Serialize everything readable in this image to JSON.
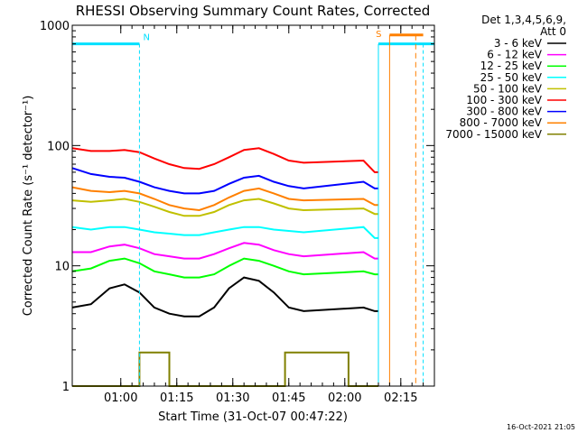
{
  "chart_data": {
    "type": "line",
    "title": "RHESSI Observing Summary Count Rates, Corrected",
    "xlabel": "Start Time (31-Oct-07 00:47:22)",
    "ylabel": "Corrected Count Rate (s⁻¹ detector⁻¹)",
    "y_scale": "log",
    "ylim": [
      1,
      1000
    ],
    "xlim_minutes": [
      0,
      97
    ],
    "y_tick_labels": [
      "1",
      "10",
      "100",
      "1000"
    ],
    "x_tick_labels": [
      "01:00",
      "01:15",
      "01:30",
      "01:45",
      "02:00",
      "02:15"
    ],
    "legend_title": "Det 1,3,4,5,6,9, Att 0",
    "legend_placement": "right",
    "timestamp": "16-Oct-2021 21:05",
    "flags": [
      {
        "label": "N",
        "color": "#00e0ff"
      },
      {
        "label": "S",
        "color": "#ff8000"
      }
    ],
    "series": [
      {
        "name": "3 - 6 keV",
        "color": "#000000",
        "points": [
          [
            0,
            4.5
          ],
          [
            5,
            4.8
          ],
          [
            10,
            6.5
          ],
          [
            14,
            7
          ],
          [
            18,
            6
          ],
          [
            22,
            4.5
          ],
          [
            26,
            4
          ],
          [
            30,
            3.8
          ],
          [
            34,
            3.8
          ],
          [
            38,
            4.5
          ],
          [
            42,
            6.5
          ],
          [
            46,
            8
          ],
          [
            50,
            7.5
          ],
          [
            54,
            6
          ],
          [
            58,
            4.5
          ],
          [
            62,
            4.2
          ],
          [
            78,
            4.5
          ],
          [
            81,
            4.2
          ],
          [
            82,
            4.2
          ]
        ]
      },
      {
        "name": "6 - 12 keV",
        "color": "#ff00ff",
        "points": [
          [
            0,
            13
          ],
          [
            5,
            13
          ],
          [
            10,
            14.5
          ],
          [
            14,
            15
          ],
          [
            18,
            14
          ],
          [
            22,
            12.5
          ],
          [
            26,
            12
          ],
          [
            30,
            11.5
          ],
          [
            34,
            11.5
          ],
          [
            38,
            12.5
          ],
          [
            42,
            14
          ],
          [
            46,
            15.5
          ],
          [
            50,
            15
          ],
          [
            54,
            13.5
          ],
          [
            58,
            12.5
          ],
          [
            62,
            12
          ],
          [
            78,
            13
          ],
          [
            81,
            11.5
          ],
          [
            82,
            11.5
          ]
        ]
      },
      {
        "name": "12 - 25 keV",
        "color": "#00ff00",
        "points": [
          [
            0,
            9
          ],
          [
            5,
            9.5
          ],
          [
            10,
            11
          ],
          [
            14,
            11.5
          ],
          [
            18,
            10.5
          ],
          [
            22,
            9
          ],
          [
            26,
            8.5
          ],
          [
            30,
            8
          ],
          [
            34,
            8
          ],
          [
            38,
            8.5
          ],
          [
            42,
            10
          ],
          [
            46,
            11.5
          ],
          [
            50,
            11
          ],
          [
            54,
            10
          ],
          [
            58,
            9
          ],
          [
            62,
            8.5
          ],
          [
            78,
            9
          ],
          [
            81,
            8.5
          ],
          [
            82,
            8.5
          ]
        ]
      },
      {
        "name": "25 - 50 keV",
        "color": "#00ffff",
        "points": [
          [
            0,
            21
          ],
          [
            5,
            20
          ],
          [
            10,
            21
          ],
          [
            14,
            21
          ],
          [
            18,
            20
          ],
          [
            22,
            19
          ],
          [
            26,
            18.5
          ],
          [
            30,
            18
          ],
          [
            34,
            18
          ],
          [
            38,
            19
          ],
          [
            42,
            20
          ],
          [
            46,
            21
          ],
          [
            50,
            21
          ],
          [
            54,
            20
          ],
          [
            58,
            19.5
          ],
          [
            62,
            19
          ],
          [
            78,
            21
          ],
          [
            81,
            17
          ],
          [
            82,
            17
          ]
        ]
      },
      {
        "name": "50 - 100 keV",
        "color": "#c0c000",
        "points": [
          [
            0,
            35
          ],
          [
            5,
            34
          ],
          [
            10,
            35
          ],
          [
            14,
            36
          ],
          [
            18,
            34
          ],
          [
            22,
            31
          ],
          [
            26,
            28
          ],
          [
            30,
            26
          ],
          [
            34,
            26
          ],
          [
            38,
            28
          ],
          [
            42,
            32
          ],
          [
            46,
            35
          ],
          [
            50,
            36
          ],
          [
            54,
            33
          ],
          [
            58,
            30
          ],
          [
            62,
            29
          ],
          [
            78,
            30
          ],
          [
            81,
            27
          ],
          [
            82,
            27
          ]
        ]
      },
      {
        "name": "100 - 300 keV",
        "color": "#ff0000",
        "points": [
          [
            0,
            95
          ],
          [
            5,
            90
          ],
          [
            10,
            90
          ],
          [
            14,
            92
          ],
          [
            18,
            88
          ],
          [
            22,
            78
          ],
          [
            26,
            70
          ],
          [
            30,
            65
          ],
          [
            34,
            64
          ],
          [
            38,
            70
          ],
          [
            42,
            80
          ],
          [
            46,
            92
          ],
          [
            50,
            95
          ],
          [
            54,
            85
          ],
          [
            58,
            75
          ],
          [
            62,
            72
          ],
          [
            78,
            75
          ],
          [
            81,
            60
          ],
          [
            82,
            60
          ]
        ]
      },
      {
        "name": "300 - 800 keV",
        "color": "#0000ff",
        "points": [
          [
            0,
            65
          ],
          [
            5,
            58
          ],
          [
            10,
            55
          ],
          [
            14,
            54
          ],
          [
            18,
            50
          ],
          [
            22,
            45
          ],
          [
            26,
            42
          ],
          [
            30,
            40
          ],
          [
            34,
            40
          ],
          [
            38,
            42
          ],
          [
            42,
            48
          ],
          [
            46,
            54
          ],
          [
            50,
            56
          ],
          [
            54,
            50
          ],
          [
            58,
            46
          ],
          [
            62,
            44
          ],
          [
            78,
            50
          ],
          [
            81,
            44
          ],
          [
            82,
            44
          ]
        ]
      },
      {
        "name": "800 - 7000 keV",
        "color": "#ff8000",
        "points": [
          [
            0,
            45
          ],
          [
            5,
            42
          ],
          [
            10,
            41
          ],
          [
            14,
            42
          ],
          [
            18,
            40
          ],
          [
            22,
            36
          ],
          [
            26,
            32
          ],
          [
            30,
            30
          ],
          [
            34,
            29
          ],
          [
            38,
            32
          ],
          [
            42,
            37
          ],
          [
            46,
            42
          ],
          [
            50,
            44
          ],
          [
            54,
            40
          ],
          [
            58,
            36
          ],
          [
            62,
            35
          ],
          [
            78,
            36
          ],
          [
            81,
            32
          ],
          [
            82,
            32
          ]
        ]
      },
      {
        "name": "7000 - 15000 keV",
        "color": "#808000",
        "points": [
          [
            0,
            1
          ],
          [
            18,
            1
          ],
          [
            18,
            1.9
          ],
          [
            26,
            1.9
          ],
          [
            26,
            1
          ],
          [
            57,
            1
          ],
          [
            57,
            1.9
          ],
          [
            74,
            1.9
          ],
          [
            74,
            1
          ],
          [
            82,
            1
          ]
        ]
      }
    ]
  }
}
